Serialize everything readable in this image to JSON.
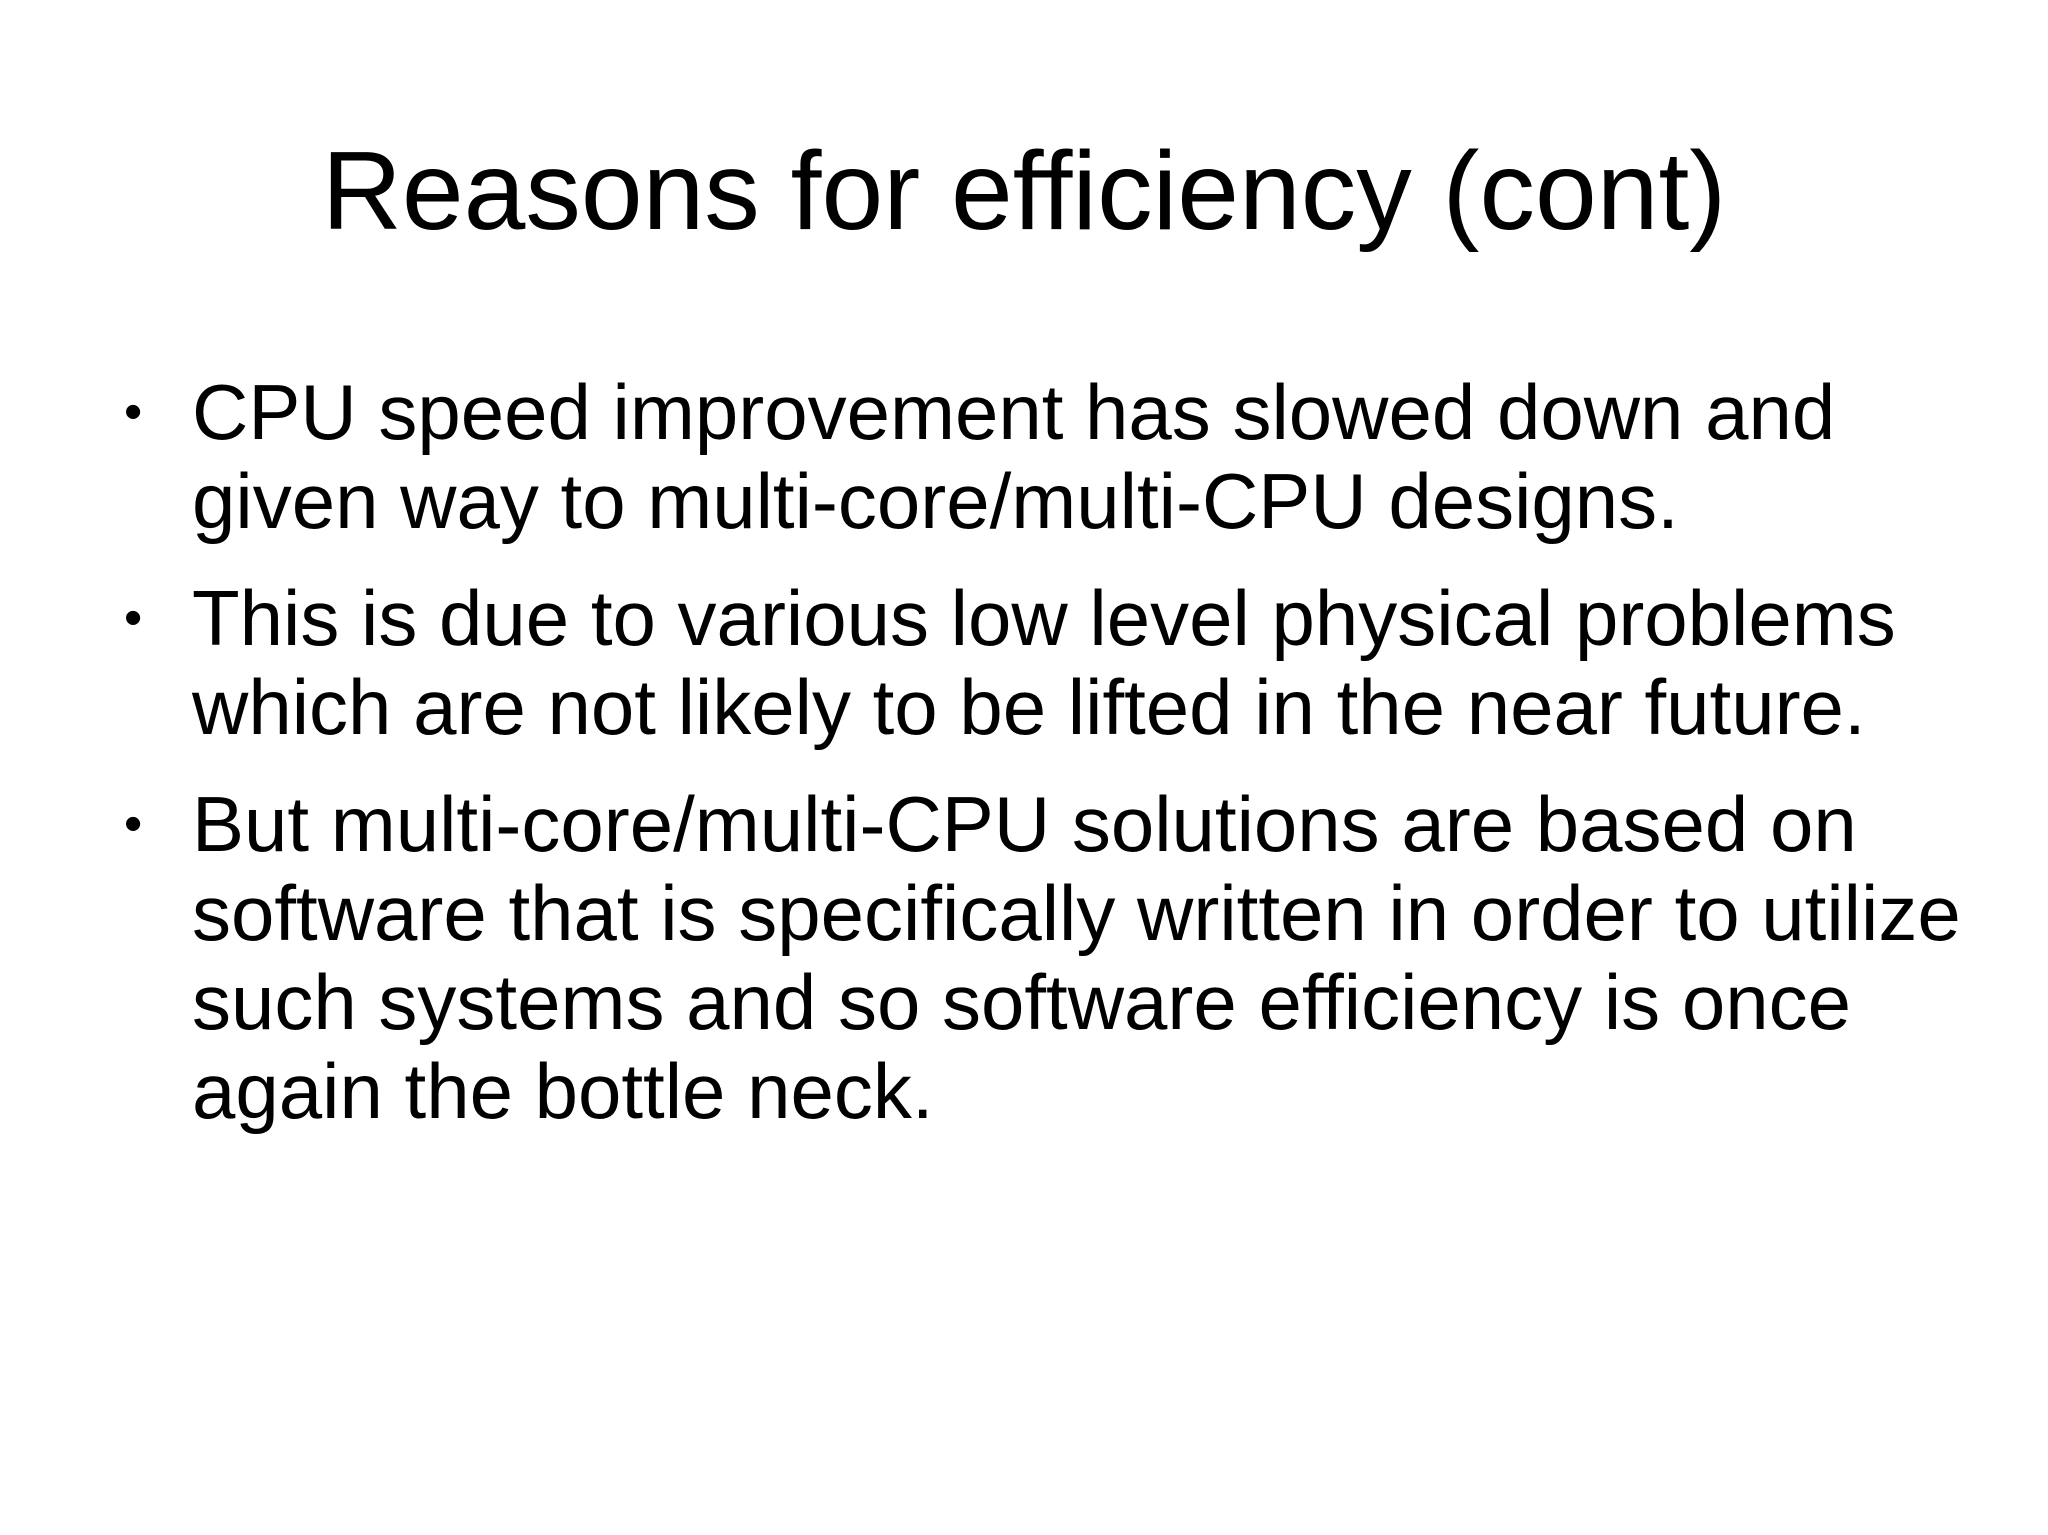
{
  "slide": {
    "title": "Reasons for efficiency (cont)",
    "bullets": [
      "CPU speed improvement has slowed down and given way to multi-core/multi-CPU designs.",
      "This is due to various low level physical problems which are not likely to be lifted in the near future.",
      "But multi-core/multi-CPU solutions are based on software that is specifically written in order to utilize such systems and so software efficiency is once again the bottle neck."
    ],
    "bullet_glyph": "•"
  },
  "colors": {
    "background": "#ffffff",
    "text": "#000000"
  }
}
